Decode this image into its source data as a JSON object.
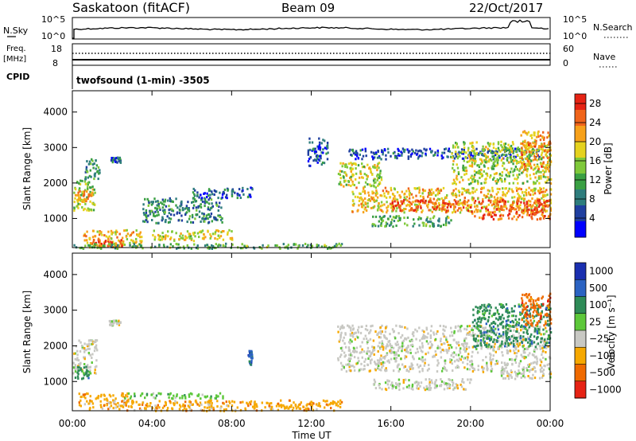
{
  "header": {
    "station": "Saskatoon (fitACF)",
    "beam": "Beam 09",
    "date": "22/Oct/2017"
  },
  "top_panels": {
    "nsky_label": "N.Sky",
    "nsearch_label": "N.Search",
    "noise_ticks": [
      "10^5",
      "10^0"
    ],
    "freq_label_1": "Freq.",
    "freq_label_2": "[MHz]",
    "freq_ticks_left": [
      "18",
      "8"
    ],
    "nave_label": "Nave",
    "nave_ticks_right": [
      "60",
      "0"
    ],
    "cpid_label": "CPID",
    "cpid_text": "twofsound (1-min) -3505"
  },
  "chart_data": [
    {
      "type": "heatmap",
      "name": "power",
      "ylabel": "Slant Range [km]",
      "xlabel": "",
      "xlim": [
        0,
        24
      ],
      "ylim": [
        180,
        4600
      ],
      "yticks": [
        1000,
        2000,
        3000,
        4000
      ],
      "xticks": [
        0,
        4,
        8,
        12,
        16,
        20,
        24
      ],
      "colorbar": {
        "label": "Power [dB]",
        "ticks": [
          "4",
          "8",
          "12",
          "16",
          "20",
          "24",
          "28"
        ],
        "range": [
          0,
          30
        ],
        "colors": [
          "#0000ff",
          "#1f3fa0",
          "#2e7d7d",
          "#3aa043",
          "#7fc93a",
          "#e5d21e",
          "#f7a11a",
          "#f0641a",
          "#e62314"
        ]
      },
      "regions": [
        {
          "t0": 0.0,
          "t1": 1.1,
          "r0": 1250,
          "r1": 2100,
          "v": 16
        },
        {
          "t0": 0.2,
          "t1": 1.0,
          "r0": 1500,
          "r1": 1800,
          "v": 22
        },
        {
          "t0": 0.5,
          "t1": 3.5,
          "r0": 220,
          "r1": 700,
          "v": 20
        },
        {
          "t0": 1.0,
          "t1": 2.5,
          "r0": 250,
          "r1": 450,
          "v": 27
        },
        {
          "t0": 0.6,
          "t1": 1.4,
          "r0": 2100,
          "r1": 2700,
          "v": 10
        },
        {
          "t0": 1.9,
          "t1": 2.4,
          "r0": 2600,
          "r1": 2750,
          "v": 7
        },
        {
          "t0": 3.5,
          "t1": 7.5,
          "r0": 900,
          "r1": 1600,
          "v": 9
        },
        {
          "t0": 4.0,
          "t1": 8.0,
          "r0": 400,
          "r1": 700,
          "v": 18
        },
        {
          "t0": 0.0,
          "t1": 13.5,
          "r0": 180,
          "r1": 320,
          "v": 12
        },
        {
          "t0": 6.0,
          "t1": 9.0,
          "r0": 1600,
          "r1": 1900,
          "v": 6
        },
        {
          "t0": 11.8,
          "t1": 12.8,
          "r0": 2500,
          "r1": 3300,
          "v": 6
        },
        {
          "t0": 13.3,
          "t1": 15.5,
          "r0": 1900,
          "r1": 2600,
          "v": 17
        },
        {
          "t0": 14.0,
          "t1": 24.0,
          "r0": 1200,
          "r1": 1900,
          "v": 20
        },
        {
          "t0": 16.0,
          "t1": 24.0,
          "r0": 1250,
          "r1": 1550,
          "v": 26
        },
        {
          "t0": 20.0,
          "t1": 24.0,
          "r0": 1000,
          "r1": 1300,
          "v": 25
        },
        {
          "t0": 15.0,
          "t1": 19.0,
          "r0": 800,
          "r1": 1100,
          "v": 12
        },
        {
          "t0": 13.8,
          "t1": 23.5,
          "r0": 2700,
          "r1": 3000,
          "v": 6
        },
        {
          "t0": 19.0,
          "t1": 24.0,
          "r0": 2000,
          "r1": 3200,
          "v": 16
        },
        {
          "t0": 22.5,
          "t1": 24.0,
          "r0": 2400,
          "r1": 3500,
          "v": 22
        }
      ]
    },
    {
      "type": "heatmap",
      "name": "velocity",
      "ylabel": "Slant Range [km]",
      "xlabel": "Time UT",
      "xlim": [
        0,
        24
      ],
      "ylim": [
        180,
        4600
      ],
      "yticks": [
        1000,
        2000,
        3000,
        4000
      ],
      "xticks": [
        0,
        4,
        8,
        12,
        16,
        20,
        24
      ],
      "xticklabels": [
        "00:00",
        "04:00",
        "08:00",
        "12:00",
        "16:00",
        "20:00",
        "00:00"
      ],
      "colorbar": {
        "label": "Velocity [m s⁻¹]",
        "ticks": [
          "1000",
          "500",
          "100",
          "25",
          "−25",
          "−100",
          "−500",
          "−1000"
        ],
        "colors": [
          "#1a2fb0",
          "#2b63c2",
          "#2e8b57",
          "#5dc83a",
          "#c8c8c3",
          "#f6a800",
          "#ef6a00",
          "#e62314"
        ]
      },
      "regions": [
        {
          "t0": 0.0,
          "t1": 1.2,
          "r0": 1250,
          "r1": 2200,
          "c": 4
        },
        {
          "t0": 0.1,
          "t1": 0.8,
          "r0": 1100,
          "r1": 1450,
          "c": 2
        },
        {
          "t0": 0.3,
          "t1": 2.8,
          "r0": 250,
          "r1": 700,
          "c": 5
        },
        {
          "t0": 2.5,
          "t1": 7.6,
          "r0": 550,
          "r1": 700,
          "c": 3
        },
        {
          "t0": 1.8,
          "t1": 2.4,
          "r0": 2600,
          "r1": 2750,
          "c": 4
        },
        {
          "t0": 2.5,
          "t1": 13.5,
          "r0": 200,
          "r1": 500,
          "c": 5
        },
        {
          "t0": 8.8,
          "t1": 9.0,
          "r0": 1500,
          "r1": 1900,
          "c": 1
        },
        {
          "t0": 13.3,
          "t1": 24.0,
          "r0": 1300,
          "r1": 2600,
          "c": 4
        },
        {
          "t0": 15.0,
          "t1": 20.0,
          "r0": 800,
          "r1": 1100,
          "c": 4
        },
        {
          "t0": 20.0,
          "t1": 24.0,
          "r0": 2000,
          "r1": 3200,
          "c": 2
        },
        {
          "t0": 22.5,
          "t1": 24.0,
          "r0": 2600,
          "r1": 3500,
          "c": 6
        },
        {
          "t0": 21.5,
          "t1": 24.0,
          "r0": 1100,
          "r1": 1400,
          "c": 4
        }
      ]
    }
  ]
}
